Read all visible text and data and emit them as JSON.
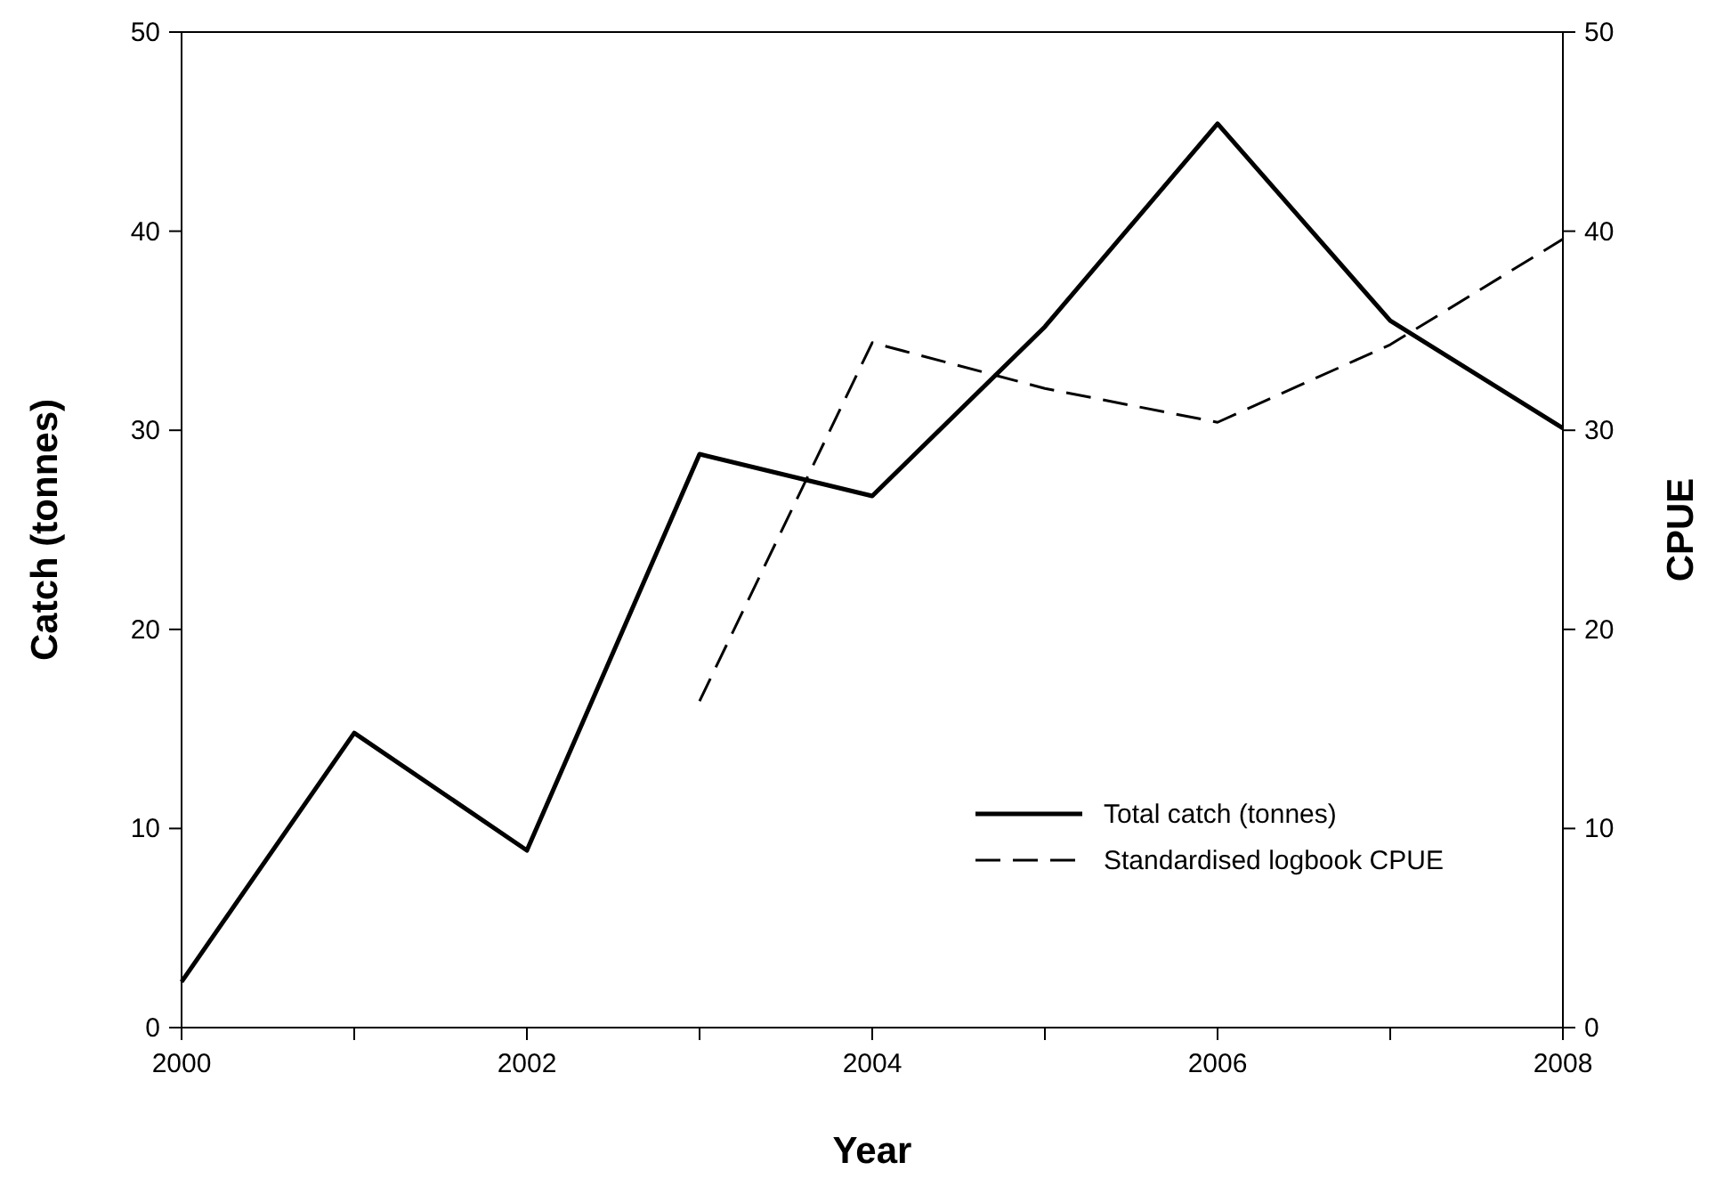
{
  "chart_data": {
    "type": "line",
    "xlabel": "Year",
    "ylabel": "Catch (tonnes)",
    "y2label": "CPUE",
    "xlim": [
      2000,
      2008
    ],
    "xticks": [
      2000,
      {
        "value": 2001,
        "label": null
      },
      2002,
      {
        "value": 2003,
        "label": null
      },
      2004,
      {
        "value": 2005,
        "label": null
      },
      2006,
      {
        "value": 2007,
        "label": null
      },
      2008
    ],
    "ylim": [
      0,
      50
    ],
    "yticks": [
      0,
      10,
      20,
      30,
      40,
      50
    ],
    "y2lim": [
      0,
      50
    ],
    "y2ticks": [
      0,
      10,
      20,
      30,
      40,
      50
    ],
    "legend": "bottom right",
    "grid": false,
    "marker": "none",
    "series": [
      {
        "name": "Total catch (tonnes)",
        "color": "#000000",
        "line_style": "solid",
        "x": [
          2000,
          2001,
          2002,
          2003,
          2004,
          2005,
          2006,
          2007,
          2008
        ],
        "values": [
          2.3,
          14.8,
          8.9,
          28.8,
          26.7,
          35.2,
          45.4,
          35.5,
          30.1
        ]
      },
      {
        "name": "Standardised logbook CPUE",
        "color": "#000000",
        "line_style": "dashed",
        "axis": "y2",
        "x": [
          2003,
          2004,
          2005,
          2006,
          2007,
          2008
        ],
        "values": [
          16.4,
          34.4,
          32.1,
          30.4,
          34.3,
          39.6
        ]
      }
    ]
  }
}
